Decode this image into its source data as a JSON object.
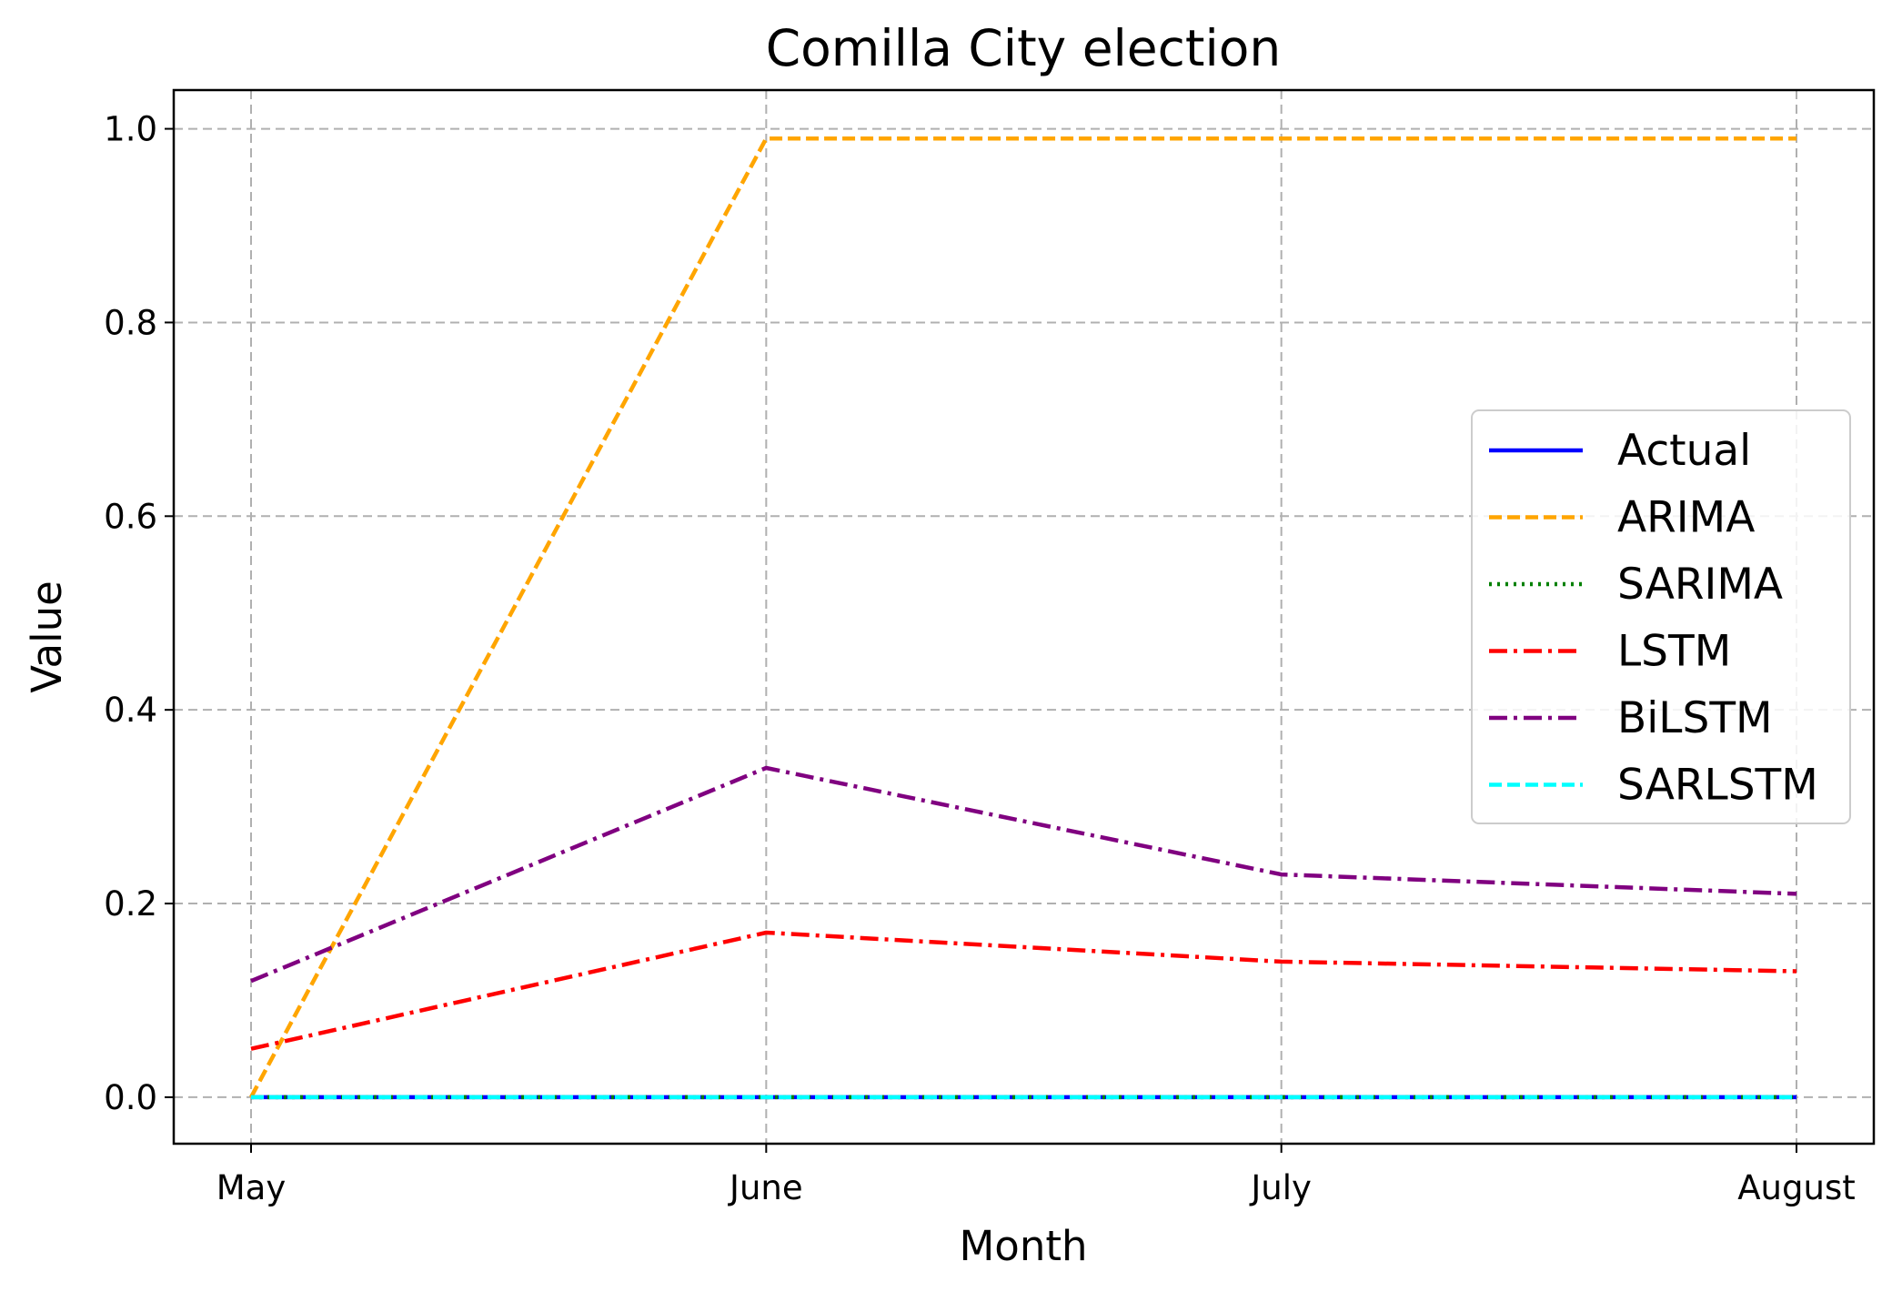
{
  "chart_data": {
    "type": "line",
    "title": "Comilla City election",
    "xlabel": "Month",
    "ylabel": "Value",
    "categories": [
      "May",
      "June",
      "July",
      "August"
    ],
    "ylim": [
      -0.048,
      1.04
    ],
    "yticks": [
      0.0,
      0.2,
      0.4,
      0.6,
      0.8,
      1.0
    ],
    "ytick_labels": [
      "0.0",
      "0.2",
      "0.4",
      "0.6",
      "0.8",
      "1.0"
    ],
    "grid": true,
    "legend_position": "center-right",
    "series": [
      {
        "name": "Actual",
        "values": [
          0.0,
          0.0,
          0.0,
          0.0
        ],
        "color": "#0000ff",
        "style": "solid"
      },
      {
        "name": "ARIMA",
        "values": [
          0.0,
          0.99,
          0.99,
          0.99
        ],
        "color": "#ffa500",
        "style": "dashed"
      },
      {
        "name": "SARIMA",
        "values": [
          0.0,
          0.0,
          0.0,
          0.0
        ],
        "color": "#008000",
        "style": "dotted"
      },
      {
        "name": "LSTM",
        "values": [
          0.05,
          0.17,
          0.14,
          0.13
        ],
        "color": "#ff0000",
        "style": "dashdot"
      },
      {
        "name": "BiLSTM",
        "values": [
          0.12,
          0.34,
          0.23,
          0.21
        ],
        "color": "#800080",
        "style": "dashdot"
      },
      {
        "name": "SARLSTM",
        "values": [
          0.0,
          0.0,
          0.0,
          0.0
        ],
        "color": "#00ffff",
        "style": "dashed"
      }
    ]
  }
}
